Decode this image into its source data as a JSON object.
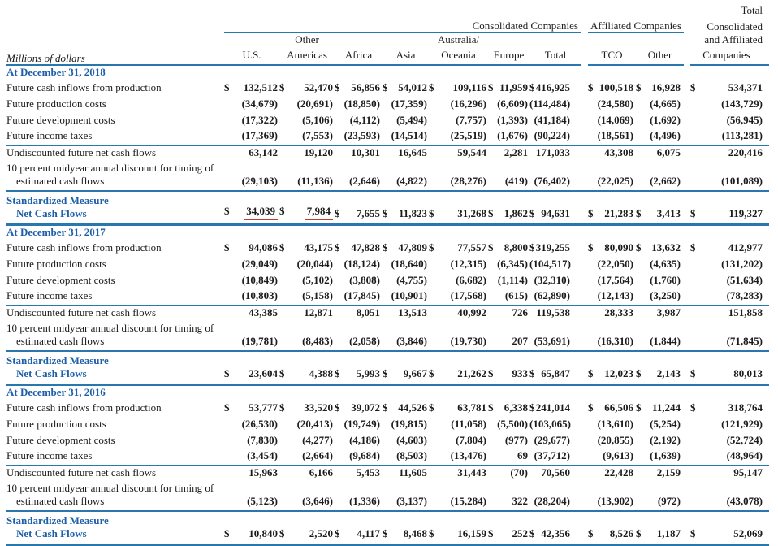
{
  "header": {
    "row_label_header": "Millions of dollars",
    "consolidated_group": "Consolidated Companies",
    "affiliated_group": "Affiliated Companies",
    "total_group_lines": [
      "Total",
      "Consolidated",
      "and Affiliated",
      "Companies"
    ],
    "col_top": {
      "other_americas": "Other",
      "australia": "Australia/"
    },
    "cols": [
      "U.S.",
      "Americas",
      "Africa",
      "Asia",
      "Oceania",
      "Europe",
      "Total",
      "TCO",
      "Other",
      "Companies"
    ]
  },
  "sections": [
    {
      "title": "At December 31, 2018",
      "rows": [
        {
          "type": "data",
          "dollar": true,
          "label": "Future cash inflows from production",
          "values": [
            "132,512",
            "52,470",
            "56,856",
            "54,012",
            "109,116",
            "11,959",
            "416,925",
            "100,518",
            "16,928",
            "534,371"
          ]
        },
        {
          "type": "data",
          "label": "Future production costs",
          "values": [
            "(34,679)",
            "(20,691)",
            "(18,850)",
            "(17,359)",
            "(16,296)",
            "(6,609)",
            "(114,484)",
            "(24,580)",
            "(4,665)",
            "(143,729)"
          ]
        },
        {
          "type": "data",
          "label": "Future development costs",
          "values": [
            "(17,322)",
            "(5,106)",
            "(4,112)",
            "(5,494)",
            "(7,757)",
            "(1,393)",
            "(41,184)",
            "(14,069)",
            "(1,692)",
            "(56,945)"
          ]
        },
        {
          "type": "data",
          "label": "Future income taxes",
          "values": [
            "(17,369)",
            "(7,553)",
            "(23,593)",
            "(14,514)",
            "(25,519)",
            "(1,676)",
            "(90,224)",
            "(18,561)",
            "(4,496)",
            "(113,281)"
          ]
        },
        {
          "type": "subtotal",
          "label": "Undiscounted future net cash flows",
          "values": [
            "63,142",
            "19,120",
            "10,301",
            "16,645",
            "59,544",
            "2,281",
            "171,033",
            "43,308",
            "6,075",
            "220,416"
          ]
        },
        {
          "type": "discount",
          "label_lines": [
            "10 percent midyear annual discount for timing of",
            "estimated cash flows"
          ],
          "values": [
            "(29,103)",
            "(11,136)",
            "(2,646)",
            "(4,822)",
            "(28,276)",
            "(419)",
            "(76,402)",
            "(22,025)",
            "(2,662)",
            "(101,089)"
          ]
        },
        {
          "type": "standardized",
          "dollar": true,
          "label_lines": [
            "Standardized Measure",
            "Net Cash Flows"
          ],
          "red_underline": [
            0,
            1
          ],
          "values": [
            "34,039",
            "7,984",
            "7,655",
            "11,823",
            "31,268",
            "1,862",
            "94,631",
            "21,283",
            "3,413",
            "119,327"
          ]
        }
      ]
    },
    {
      "title": "At December 31, 2017",
      "rows": [
        {
          "type": "data",
          "dollar": true,
          "label": "Future cash inflows from production",
          "values": [
            "94,086",
            "43,175",
            "47,828",
            "47,809",
            "77,557",
            "8,800",
            "319,255",
            "80,090",
            "13,632",
            "412,977"
          ]
        },
        {
          "type": "data",
          "label": "Future production costs",
          "values": [
            "(29,049)",
            "(20,044)",
            "(18,124)",
            "(18,640)",
            "(12,315)",
            "(6,345)",
            "(104,517)",
            "(22,050)",
            "(4,635)",
            "(131,202)"
          ]
        },
        {
          "type": "data",
          "label": "Future development costs",
          "values": [
            "(10,849)",
            "(5,102)",
            "(3,808)",
            "(4,755)",
            "(6,682)",
            "(1,114)",
            "(32,310)",
            "(17,564)",
            "(1,760)",
            "(51,634)"
          ]
        },
        {
          "type": "data",
          "label": "Future income taxes",
          "values": [
            "(10,803)",
            "(5,158)",
            "(17,845)",
            "(10,901)",
            "(17,568)",
            "(615)",
            "(62,890)",
            "(12,143)",
            "(3,250)",
            "(78,283)"
          ]
        },
        {
          "type": "subtotal",
          "label": "Undiscounted future net cash flows",
          "values": [
            "43,385",
            "12,871",
            "8,051",
            "13,513",
            "40,992",
            "726",
            "119,538",
            "28,333",
            "3,987",
            "151,858"
          ]
        },
        {
          "type": "discount",
          "label_lines": [
            "10 percent midyear annual discount for timing of",
            "estimated cash flows"
          ],
          "values": [
            "(19,781)",
            "(8,483)",
            "(2,058)",
            "(3,846)",
            "(19,730)",
            "207",
            "(53,691)",
            "(16,310)",
            "(1,844)",
            "(71,845)"
          ]
        },
        {
          "type": "standardized",
          "dollar": true,
          "label_lines": [
            "Standardized Measure",
            "Net Cash Flows"
          ],
          "values": [
            "23,604",
            "4,388",
            "5,993",
            "9,667",
            "21,262",
            "933",
            "65,847",
            "12,023",
            "2,143",
            "80,013"
          ]
        }
      ]
    },
    {
      "title": "At December 31, 2016",
      "rows": [
        {
          "type": "data",
          "dollar": true,
          "label": "Future cash inflows from production",
          "values": [
            "53,777",
            "33,520",
            "39,072",
            "44,526",
            "63,781",
            "6,338",
            "241,014",
            "66,506",
            "11,244",
            "318,764"
          ]
        },
        {
          "type": "data",
          "label": "Future production costs",
          "values": [
            "(26,530)",
            "(20,413)",
            "(19,749)",
            "(19,815)",
            "(11,058)",
            "(5,500)",
            "(103,065)",
            "(13,610)",
            "(5,254)",
            "(121,929)"
          ]
        },
        {
          "type": "data",
          "label": "Future development costs",
          "values": [
            "(7,830)",
            "(4,277)",
            "(4,186)",
            "(4,603)",
            "(7,804)",
            "(977)",
            "(29,677)",
            "(20,855)",
            "(2,192)",
            "(52,724)"
          ]
        },
        {
          "type": "data",
          "label": "Future income taxes",
          "values": [
            "(3,454)",
            "(2,664)",
            "(9,684)",
            "(8,503)",
            "(13,476)",
            "69",
            "(37,712)",
            "(9,613)",
            "(1,639)",
            "(48,964)"
          ]
        },
        {
          "type": "subtotal",
          "label": "Undiscounted future net cash flows",
          "values": [
            "15,963",
            "6,166",
            "5,453",
            "11,605",
            "31,443",
            "(70)",
            "70,560",
            "22,428",
            "2,159",
            "95,147"
          ]
        },
        {
          "type": "discount",
          "label_lines": [
            "10 percent midyear annual discount for timing of",
            "estimated cash flows"
          ],
          "values": [
            "(5,123)",
            "(3,646)",
            "(1,336)",
            "(3,137)",
            "(15,284)",
            "322",
            "(28,204)",
            "(13,902)",
            "(972)",
            "(43,078)"
          ]
        },
        {
          "type": "standardized",
          "dollar": true,
          "label_lines": [
            "Standardized Measure",
            "Net Cash Flows"
          ],
          "values": [
            "10,840",
            "2,520",
            "4,117",
            "8,468",
            "16,159",
            "252",
            "42,356",
            "8,526",
            "1,187",
            "52,069"
          ]
        }
      ]
    }
  ],
  "colors": {
    "rule_blue": "#2878ad",
    "heading_blue": "#1d5fa9",
    "annotation_red": "#c23b2b"
  }
}
